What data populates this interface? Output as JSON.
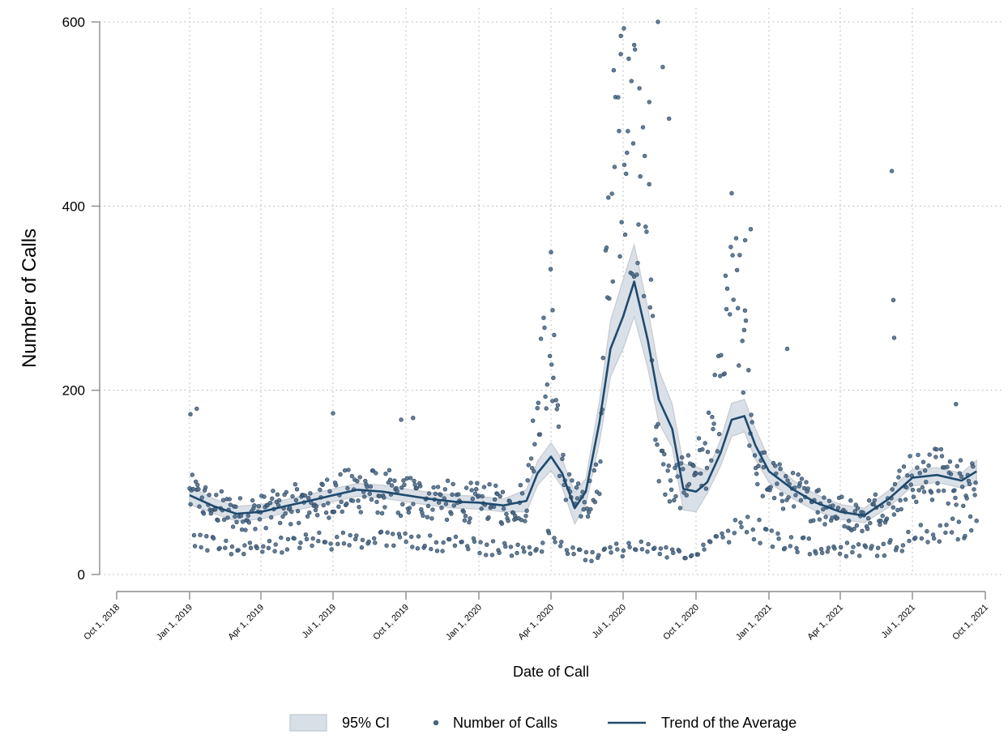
{
  "chart_data": {
    "type": "scatter",
    "title": "",
    "xlabel": "Date of Call",
    "ylabel": "Number of Calls",
    "ylim": [
      0,
      600
    ],
    "yticks": [
      0,
      200,
      400,
      600
    ],
    "xlim": [
      "2018-10-01",
      "2021-10-01"
    ],
    "xticks": [
      {
        "date": "2018-10-01",
        "label": "Oct 1, 2018"
      },
      {
        "date": "2019-01-01",
        "label": "Jan 1, 2019"
      },
      {
        "date": "2019-04-01",
        "label": "Apr 1, 2019"
      },
      {
        "date": "2019-07-01",
        "label": "Jul 1, 2019"
      },
      {
        "date": "2019-10-01",
        "label": "Oct 1, 2019"
      },
      {
        "date": "2020-01-01",
        "label": "Jan 1, 2020"
      },
      {
        "date": "2020-04-01",
        "label": "Apr 1, 2020"
      },
      {
        "date": "2020-07-01",
        "label": "Jul 1, 2020"
      },
      {
        "date": "2020-10-01",
        "label": "Oct 1, 2020"
      },
      {
        "date": "2021-01-01",
        "label": "Jan 1, 2021"
      },
      {
        "date": "2021-04-01",
        "label": "Apr 1, 2021"
      },
      {
        "date": "2021-07-01",
        "label": "Jul 1, 2021"
      },
      {
        "date": "2021-10-01",
        "label": "Oct 1, 2021"
      }
    ],
    "legend": {
      "position": "bottom",
      "items": [
        {
          "key": "ci",
          "label": "95% CI"
        },
        {
          "key": "points",
          "label": "Number of Calls"
        },
        {
          "key": "trend",
          "label": "Trend of the Average"
        }
      ]
    },
    "colors": {
      "points": "#4a6785",
      "trend": "#1f4a6e",
      "ci_fill": "#d9dfe6",
      "ci_edge": "#c2c8cf",
      "grid": "#b0b0b0",
      "axis": "#8c8c8c"
    },
    "trend": {
      "name": "Trend of the Average",
      "x": [
        "2019-01-01",
        "2019-02-01",
        "2019-03-01",
        "2019-04-01",
        "2019-05-01",
        "2019-06-01",
        "2019-07-01",
        "2019-08-01",
        "2019-09-01",
        "2019-10-01",
        "2019-11-01",
        "2019-12-01",
        "2020-01-01",
        "2020-02-01",
        "2020-03-01",
        "2020-03-15",
        "2020-04-01",
        "2020-04-15",
        "2020-05-01",
        "2020-05-15",
        "2020-06-01",
        "2020-06-15",
        "2020-07-01",
        "2020-07-15",
        "2020-08-01",
        "2020-08-15",
        "2020-09-01",
        "2020-09-15",
        "2020-10-01",
        "2020-10-15",
        "2020-11-01",
        "2020-11-15",
        "2020-12-01",
        "2020-12-15",
        "2021-01-01",
        "2021-02-01",
        "2021-03-01",
        "2021-04-01",
        "2021-05-01",
        "2021-06-01",
        "2021-07-01",
        "2021-08-01",
        "2021-09-01",
        "2021-09-20"
      ],
      "y": [
        86,
        74,
        66,
        68,
        74,
        80,
        86,
        92,
        90,
        86,
        82,
        79,
        78,
        75,
        80,
        110,
        128,
        110,
        72,
        90,
        165,
        245,
        280,
        318,
        255,
        190,
        158,
        93,
        90,
        100,
        132,
        168,
        172,
        140,
        112,
        92,
        78,
        68,
        64,
        82,
        105,
        108,
        102,
        112
      ],
      "ci_lower": [
        76,
        66,
        58,
        60,
        67,
        73,
        79,
        85,
        83,
        79,
        75,
        72,
        71,
        68,
        68,
        97,
        113,
        95,
        55,
        76,
        143,
        215,
        245,
        280,
        225,
        165,
        138,
        70,
        68,
        88,
        118,
        150,
        155,
        125,
        100,
        82,
        69,
        60,
        56,
        73,
        96,
        100,
        94,
        100
      ],
      "ci_upper": [
        96,
        82,
        74,
        76,
        81,
        87,
        93,
        99,
        97,
        93,
        89,
        86,
        85,
        82,
        92,
        123,
        143,
        125,
        89,
        104,
        187,
        275,
        320,
        358,
        290,
        222,
        185,
        120,
        117,
        112,
        146,
        186,
        190,
        158,
        125,
        102,
        87,
        76,
        72,
        91,
        114,
        116,
        110,
        124
      ]
    },
    "points": {
      "name": "Number of Calls",
      "count": 912,
      "x_start": "2019-01-01",
      "x_end": "2021-09-20",
      "base_weekday": [
        86,
        74,
        66,
        68,
        74,
        80,
        86,
        92,
        90,
        86,
        82,
        79,
        78,
        75,
        80,
        190,
        265,
        110,
        80,
        80,
        100,
        420,
        480,
        440,
        380,
        120,
        95,
        100,
        115,
        130,
        200,
        330,
        240,
        120,
        100,
        88,
        78,
        68,
        64,
        80,
        105,
        110,
        100,
        115
      ],
      "base_weekend": [
        40,
        32,
        28,
        30,
        32,
        35,
        36,
        38,
        36,
        35,
        34,
        32,
        30,
        28,
        26,
        30,
        40,
        28,
        22,
        20,
        22,
        28,
        28,
        30,
        28,
        28,
        22,
        22,
        25,
        28,
        35,
        45,
        55,
        50,
        40,
        35,
        30,
        28,
        26,
        30,
        40,
        45,
        50,
        58
      ],
      "outliers": [
        {
          "date": "2019-01-10",
          "value": 180
        },
        {
          "date": "2019-01-02",
          "value": 174
        },
        {
          "date": "2019-07-01",
          "value": 175
        },
        {
          "date": "2019-09-25",
          "value": 168
        },
        {
          "date": "2019-10-10",
          "value": 170
        },
        {
          "date": "2020-04-01",
          "value": 350
        },
        {
          "date": "2020-04-03",
          "value": 287
        },
        {
          "date": "2020-04-05",
          "value": 260
        },
        {
          "date": "2020-06-28",
          "value": 565
        },
        {
          "date": "2020-07-02",
          "value": 593
        },
        {
          "date": "2020-07-08",
          "value": 560
        },
        {
          "date": "2020-07-15",
          "value": 575
        },
        {
          "date": "2020-07-16",
          "value": 570
        },
        {
          "date": "2020-08-03",
          "value": 513
        },
        {
          "date": "2020-08-14",
          "value": 600
        },
        {
          "date": "2020-08-20",
          "value": 551
        },
        {
          "date": "2020-08-28",
          "value": 495
        },
        {
          "date": "2020-12-02",
          "value": 363
        },
        {
          "date": "2020-12-09",
          "value": 375
        },
        {
          "date": "2021-01-24",
          "value": 245
        },
        {
          "date": "2021-06-05",
          "value": 438
        },
        {
          "date": "2021-06-07",
          "value": 298
        },
        {
          "date": "2021-06-08",
          "value": 257
        },
        {
          "date": "2021-08-25",
          "value": 185
        }
      ]
    }
  }
}
